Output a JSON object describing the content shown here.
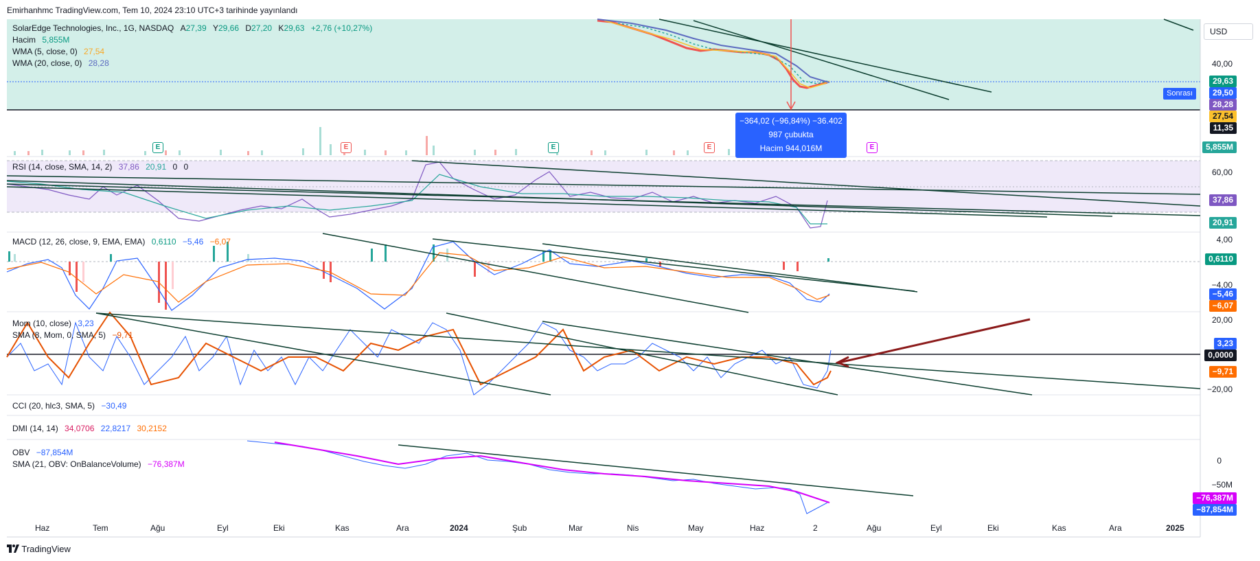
{
  "header": {
    "publisher": "Emirhanhmc TradingView.com, Tem 10, 2024 23:10 UTC+3 tarihinde yayınlandı"
  },
  "currency": "USD",
  "main": {
    "symbol": "SolarEdge Technologies, Inc., 1G, NASDAQ",
    "ohlc": {
      "a_label": "A",
      "a": "27,39",
      "y_label": "Y",
      "y": "29,66",
      "d_label": "D",
      "d": "27,20",
      "k_label": "K",
      "k": "29,63",
      "chg": "+2,76 (+10,27%)"
    },
    "volume": {
      "label": "Hacim",
      "value": "5,855M"
    },
    "wma5": {
      "label": "WMA (5, close, 0)",
      "value": "27,54"
    },
    "wma20": {
      "label": "WMA (20, close, 0)",
      "value": "28,28"
    },
    "axis_tick": "40,00"
  },
  "price_boxes": [
    {
      "text": "29,63",
      "color": "#089981"
    },
    {
      "text": "29,50",
      "color": "#2962ff"
    },
    {
      "text": "28,28",
      "color": "#7e57c2"
    },
    {
      "text": "27,54",
      "color": "#fbc02d"
    },
    {
      "text": "11,35",
      "color": "#131722"
    },
    {
      "text": "5,855M",
      "color": "#26a69a"
    }
  ],
  "after_hours_tag": "Sonrası",
  "measure": {
    "line1": "−364,02 (−96,84%) −36.402",
    "line2": "987 çubukta",
    "line3": "Hacim 944,016M"
  },
  "earnings_markers": [
    "E",
    "E",
    "E",
    "E",
    "E"
  ],
  "rsi": {
    "label": "RSI (14, close, SMA, 14, 2)",
    "v1": "37,86",
    "v2": "20,91",
    "v3": "0",
    "v4": "0",
    "tick": "60,00",
    "box1": "37,86",
    "box2": "20,91"
  },
  "macd": {
    "label": "MACD (12, 26, close, 9, EMA, EMA)",
    "v1": "0,6110",
    "v2": "−5,46",
    "v3": "−6,07",
    "tick_top": "4,00",
    "tick_bottom": "−4,00",
    "box1": "0,6110",
    "box2": "−5,46",
    "box3": "−6,07"
  },
  "mom": {
    "label": "Mom (10, close)",
    "value": "3,23",
    "sma_label": "SMA (8, Mom, 0, SMA, 5)",
    "sma_value": "−9,71",
    "tick_top": "20,00",
    "tick_bottom": "−20,00",
    "box1": "3,23",
    "box2": "0,0000",
    "box3": "−9,71"
  },
  "cci": {
    "label": "CCI (20, hlc3, SMA, 5)",
    "value": "−30,49"
  },
  "dmi": {
    "label": "DMI (14, 14)",
    "v1": "34,0706",
    "v2": "22,8217",
    "v3": "30,2152"
  },
  "obv": {
    "label": "OBV",
    "value": "−87,854M",
    "sma_label": "SMA (21, OBV: OnBalanceVolume)",
    "sma_value": "−76,387M",
    "tick_zero": "0",
    "tick_neg": "−50M",
    "box1": "−76,387M",
    "box2": "−87,854M"
  },
  "x_axis": [
    "Haz",
    "Tem",
    "Ağu",
    "Eyl",
    "Eki",
    "Kas",
    "Ara",
    "2024",
    "Şub",
    "Mar",
    "Nis",
    "May",
    "Haz",
    "2",
    "Ağu",
    "Eyl",
    "Eki",
    "Kas",
    "Ara",
    "2025"
  ],
  "footer": {
    "brand": "TradingView"
  },
  "colors": {
    "up": "#26a69a",
    "down": "#ef5350",
    "rsi": "#7e57c2",
    "macd": "#2962ff",
    "signal": "#ff6d00",
    "wma5": "#fbc02d",
    "wma20": "#5c6bc0",
    "obv": "#2962ff",
    "obv_sma": "#d500f9",
    "trend": "#0b3d2e",
    "arrow": "#8b1a1a"
  }
}
